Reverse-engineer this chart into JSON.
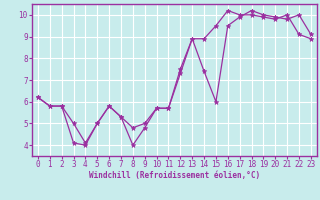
{
  "line1_x": [
    0,
    1,
    2,
    3,
    4,
    5,
    6,
    7,
    8,
    9,
    10,
    11,
    12,
    13,
    14,
    15,
    16,
    17,
    18,
    19,
    20,
    21,
    22,
    23
  ],
  "line1_y": [
    6.2,
    5.8,
    5.8,
    5.0,
    4.1,
    5.0,
    5.8,
    5.3,
    4.0,
    4.8,
    5.7,
    5.7,
    7.5,
    8.9,
    7.4,
    6.0,
    9.5,
    9.9,
    10.2,
    10.0,
    9.9,
    9.8,
    10.0,
    9.1
  ],
  "line2_x": [
    0,
    1,
    2,
    3,
    4,
    5,
    6,
    7,
    8,
    9,
    10,
    11,
    12,
    13,
    14,
    15,
    16,
    17,
    18,
    19,
    20,
    21,
    22,
    23
  ],
  "line2_y": [
    6.2,
    5.8,
    5.8,
    4.1,
    4.0,
    5.0,
    5.8,
    5.3,
    4.8,
    5.0,
    5.7,
    5.7,
    7.3,
    8.9,
    8.9,
    9.5,
    10.2,
    10.0,
    10.0,
    9.9,
    9.8,
    10.0,
    9.1,
    8.9
  ],
  "line_color": "#9b30a0",
  "bg_color": "#c8ecec",
  "grid_color": "#ffffff",
  "xlabel": "Windchill (Refroidissement éolien,°C)",
  "ylim": [
    3.5,
    10.5
  ],
  "xlim": [
    -0.5,
    23.5
  ],
  "yticks": [
    4,
    5,
    6,
    7,
    8,
    9,
    10
  ],
  "xticks": [
    0,
    1,
    2,
    3,
    4,
    5,
    6,
    7,
    8,
    9,
    10,
    11,
    12,
    13,
    14,
    15,
    16,
    17,
    18,
    19,
    20,
    21,
    22,
    23
  ]
}
